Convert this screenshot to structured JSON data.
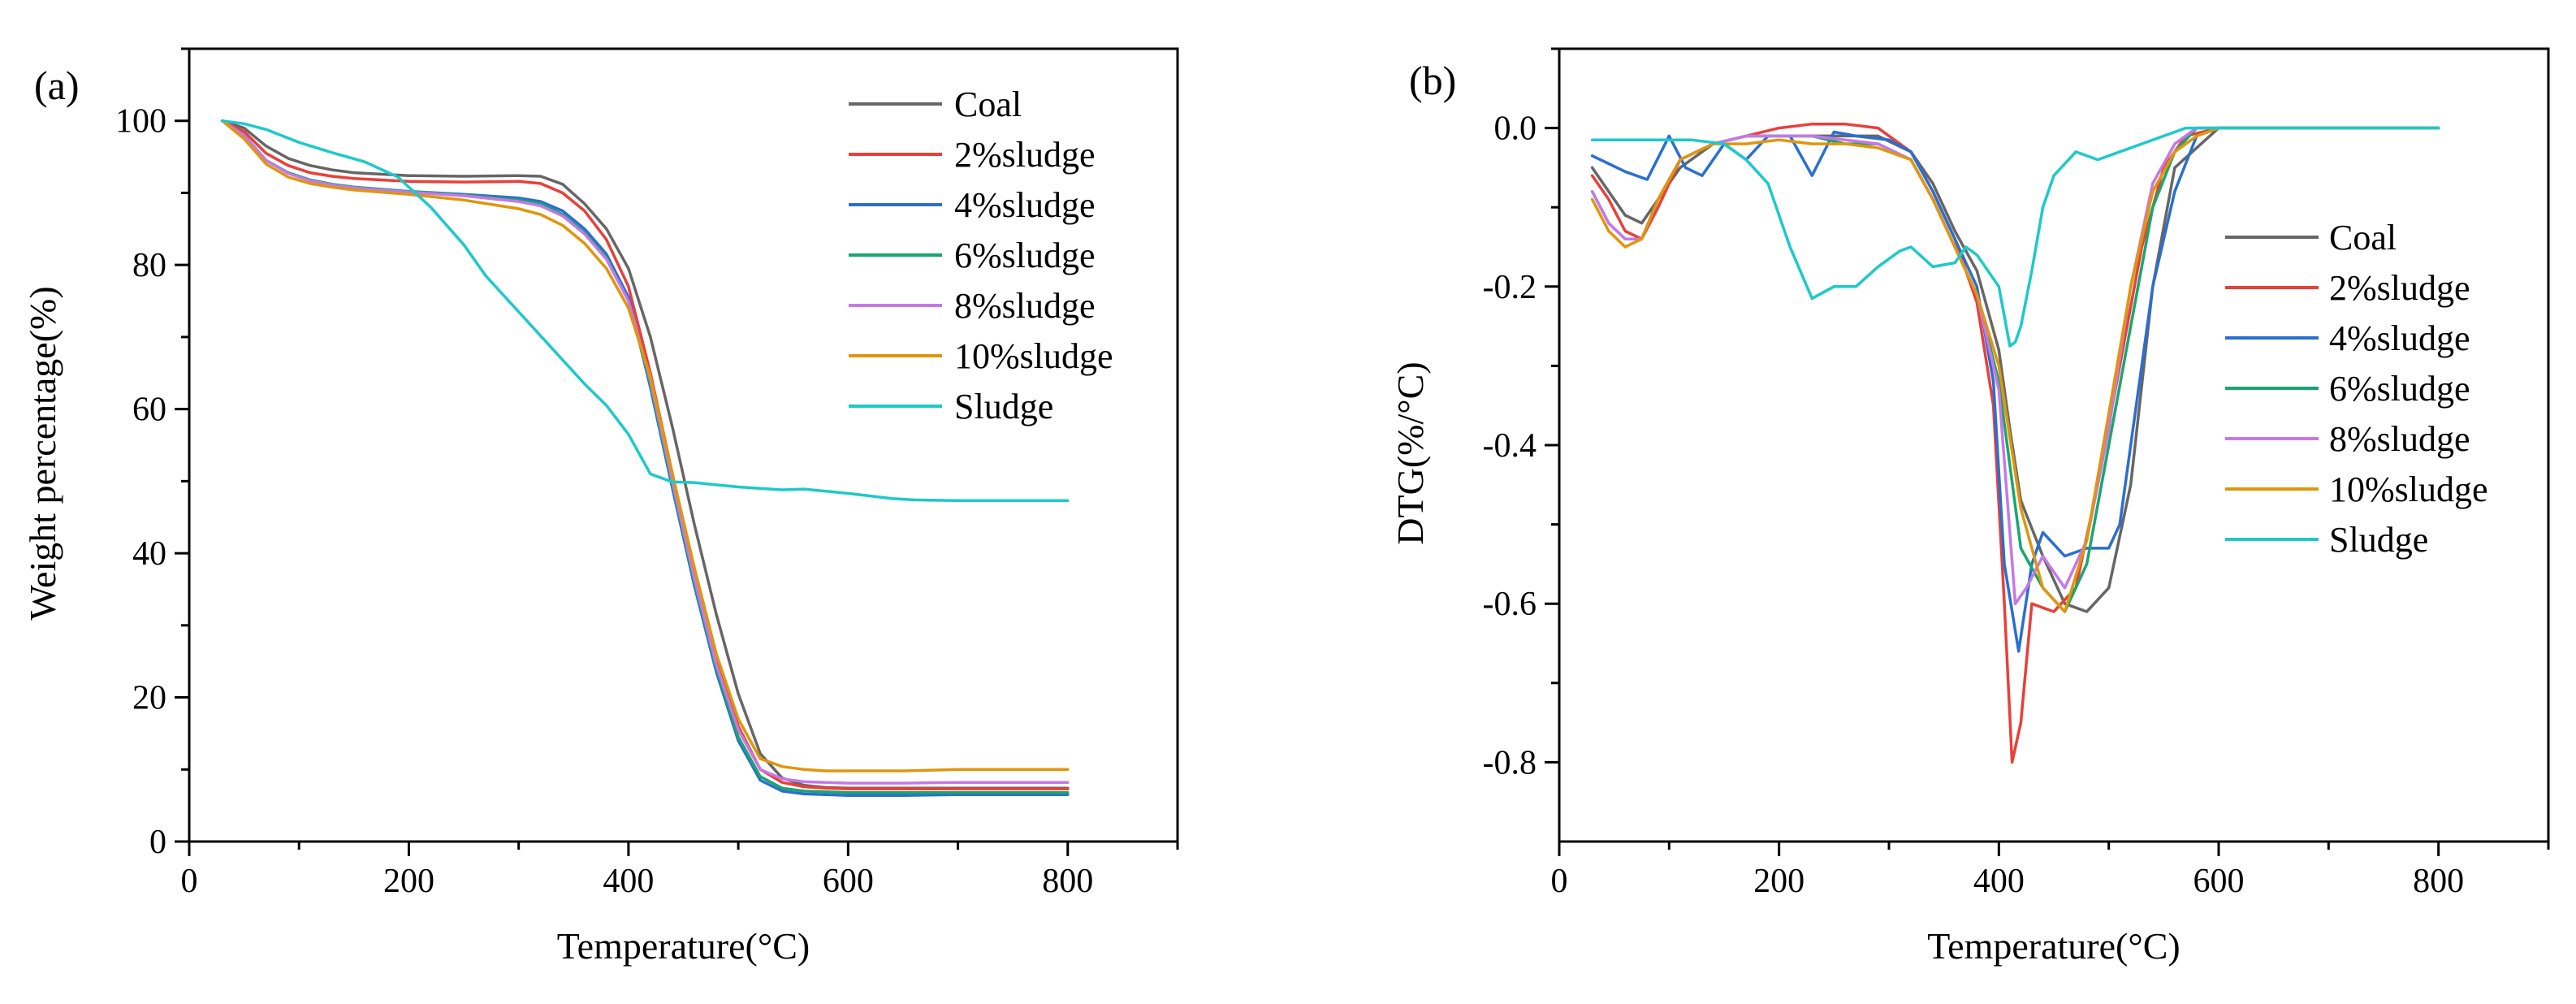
{
  "chart_data": [
    {
      "type": "line",
      "panel_label": "(a)",
      "xlabel": "Temperature(°C)",
      "ylabel": "Weight percentage(%)",
      "xlim": [
        0,
        900
      ],
      "ylim": [
        0,
        110
      ],
      "xticks": [
        0,
        200,
        400,
        600,
        800
      ],
      "yticks": [
        0,
        20,
        40,
        60,
        80,
        100
      ],
      "legend_position": "top-right",
      "series": [
        {
          "name": "Coal",
          "color": "#666666",
          "x": [
            30,
            50,
            70,
            90,
            110,
            130,
            150,
            200,
            250,
            300,
            320,
            340,
            360,
            380,
            400,
            420,
            440,
            460,
            480,
            500,
            520,
            540,
            560,
            580,
            600,
            650,
            700,
            750,
            800
          ],
          "y": [
            100,
            99,
            96.5,
            94.8,
            93.8,
            93.2,
            92.8,
            92.4,
            92.3,
            92.4,
            92.3,
            91.2,
            88.5,
            85,
            79.5,
            70,
            57.5,
            44,
            31.5,
            20.5,
            12.2,
            8.8,
            7.8,
            7.5,
            7.4,
            7.4,
            7.4,
            7.4,
            7.4
          ]
        },
        {
          "name": "2%sludge",
          "color": "#e8403a",
          "x": [
            30,
            50,
            70,
            90,
            110,
            130,
            150,
            200,
            250,
            300,
            320,
            340,
            360,
            380,
            400,
            420,
            440,
            460,
            480,
            500,
            520,
            540,
            560,
            580,
            600,
            650,
            700,
            750,
            800
          ],
          "y": [
            100,
            98.5,
            95.5,
            93.8,
            92.8,
            92.3,
            92,
            91.6,
            91.5,
            91.6,
            91.3,
            90,
            87.5,
            83.5,
            77,
            65,
            51,
            37.5,
            25.5,
            16,
            10,
            8.2,
            7.6,
            7.4,
            7.3,
            7.3,
            7.3,
            7.3,
            7.3
          ]
        },
        {
          "name": "4%sludge",
          "color": "#2a6fd1",
          "x": [
            30,
            50,
            70,
            90,
            110,
            130,
            150,
            200,
            250,
            300,
            320,
            340,
            360,
            380,
            400,
            420,
            440,
            460,
            480,
            500,
            520,
            540,
            560,
            580,
            600,
            650,
            700,
            750,
            800
          ],
          "y": [
            100,
            98,
            94.5,
            92.8,
            91.8,
            91.2,
            90.8,
            90.2,
            89.8,
            89.3,
            88.8,
            87.5,
            85,
            81.5,
            75.5,
            63,
            49,
            35.5,
            23.5,
            14,
            8.5,
            7,
            6.6,
            6.5,
            6.4,
            6.4,
            6.5,
            6.5,
            6.5
          ]
        },
        {
          "name": "6%sludge",
          "color": "#1aa66d",
          "x": [
            30,
            50,
            70,
            90,
            110,
            130,
            150,
            200,
            250,
            300,
            320,
            340,
            360,
            380,
            400,
            420,
            440,
            460,
            480,
            500,
            520,
            540,
            560,
            580,
            600,
            650,
            700,
            750,
            800
          ],
          "y": [
            100,
            98,
            94.5,
            92.8,
            91.8,
            91.2,
            90.8,
            90.2,
            89.7,
            89,
            88.5,
            87,
            84.5,
            81,
            75,
            63.5,
            49.5,
            36,
            24,
            14.5,
            9,
            7.4,
            7,
            6.9,
            6.8,
            6.8,
            6.8,
            6.8,
            6.8
          ]
        },
        {
          "name": "8%sludge",
          "color": "#c678e6",
          "x": [
            30,
            50,
            70,
            90,
            110,
            130,
            150,
            200,
            250,
            300,
            320,
            340,
            360,
            380,
            400,
            420,
            440,
            460,
            480,
            500,
            520,
            540,
            560,
            580,
            600,
            650,
            700,
            750,
            800
          ],
          "y": [
            100,
            98,
            94.5,
            92.7,
            91.7,
            91.1,
            90.7,
            90.1,
            89.6,
            88.8,
            88.2,
            86.8,
            84.3,
            80.8,
            75,
            64,
            50,
            36.5,
            24.5,
            15.5,
            10,
            8.7,
            8.3,
            8.2,
            8.1,
            8.1,
            8.2,
            8.2,
            8.2
          ]
        },
        {
          "name": "10%sludge",
          "color": "#e0960c",
          "x": [
            30,
            50,
            70,
            90,
            110,
            130,
            150,
            200,
            250,
            300,
            320,
            340,
            360,
            380,
            400,
            420,
            440,
            460,
            480,
            500,
            520,
            540,
            560,
            580,
            600,
            650,
            700,
            750,
            800
          ],
          "y": [
            100,
            97.5,
            94,
            92.2,
            91.3,
            90.8,
            90.4,
            89.8,
            89,
            87.8,
            87,
            85.5,
            83,
            79.5,
            74,
            64.5,
            51,
            38,
            26,
            17,
            11.5,
            10.4,
            10,
            9.8,
            9.8,
            9.8,
            10,
            10,
            10
          ]
        },
        {
          "name": "Sludge",
          "color": "#1ec9c9",
          "x": [
            30,
            50,
            70,
            100,
            130,
            160,
            190,
            220,
            250,
            270,
            300,
            330,
            360,
            380,
            400,
            420,
            440,
            460,
            500,
            540,
            560,
            600,
            640,
            660,
            700,
            750,
            800
          ],
          "y": [
            100,
            99.6,
            98.8,
            97,
            95.6,
            94.3,
            92.2,
            88,
            82.8,
            78.5,
            73.5,
            68.5,
            63.5,
            60.5,
            56.5,
            51,
            49.9,
            49.8,
            49.2,
            48.8,
            48.9,
            48.3,
            47.6,
            47.4,
            47.3,
            47.3,
            47.3
          ]
        }
      ]
    },
    {
      "type": "line",
      "panel_label": "(b)",
      "xlabel": "Temperature(°C)",
      "ylabel": "DTG(%/°C)",
      "xlim": [
        0,
        900
      ],
      "ylim": [
        -0.9,
        0.1
      ],
      "xticks": [
        0,
        200,
        400,
        600,
        800
      ],
      "yticks": [
        0.0,
        -0.2,
        -0.4,
        -0.6,
        -0.8
      ],
      "legend_position": "center-right",
      "series": [
        {
          "name": "Coal",
          "color": "#666666",
          "x": [
            30,
            45,
            60,
            75,
            90,
            110,
            140,
            170,
            200,
            230,
            260,
            290,
            320,
            340,
            360,
            380,
            400,
            410,
            420,
            440,
            460,
            480,
            500,
            520,
            540,
            560,
            600,
            650,
            700,
            800
          ],
          "y": [
            -0.05,
            -0.08,
            -0.11,
            -0.12,
            -0.09,
            -0.05,
            -0.02,
            -0.01,
            -0.01,
            -0.01,
            -0.01,
            -0.01,
            -0.03,
            -0.07,
            -0.13,
            -0.18,
            -0.28,
            -0.38,
            -0.47,
            -0.54,
            -0.6,
            -0.61,
            -0.58,
            -0.45,
            -0.2,
            -0.05,
            0.0,
            0.0,
            0.0,
            0.0
          ]
        },
        {
          "name": "2%sludge",
          "color": "#e8403a",
          "x": [
            30,
            45,
            60,
            75,
            90,
            110,
            140,
            170,
            200,
            230,
            260,
            290,
            320,
            340,
            360,
            380,
            395,
            405,
            412,
            420,
            430,
            450,
            470,
            490,
            510,
            530,
            550,
            570,
            600,
            650,
            700,
            800
          ],
          "y": [
            -0.06,
            -0.09,
            -0.13,
            -0.14,
            -0.1,
            -0.04,
            -0.02,
            -0.01,
            0.0,
            0.005,
            0.005,
            0.0,
            -0.03,
            -0.08,
            -0.14,
            -0.22,
            -0.35,
            -0.6,
            -0.8,
            -0.75,
            -0.6,
            -0.61,
            -0.58,
            -0.45,
            -0.3,
            -0.15,
            -0.05,
            -0.01,
            0.0,
            0.0,
            0.0,
            0.0
          ]
        },
        {
          "name": "4%sludge",
          "color": "#2a6fd1",
          "x": [
            30,
            45,
            60,
            80,
            100,
            115,
            130,
            150,
            170,
            190,
            210,
            230,
            250,
            270,
            300,
            320,
            340,
            360,
            380,
            395,
            405,
            418,
            430,
            440,
            460,
            480,
            500,
            510,
            520,
            540,
            560,
            580,
            600,
            650,
            700,
            800
          ],
          "y": [
            -0.035,
            -0.045,
            -0.055,
            -0.065,
            -0.01,
            -0.05,
            -0.06,
            -0.02,
            -0.04,
            -0.01,
            -0.01,
            -0.06,
            -0.005,
            -0.01,
            -0.015,
            -0.03,
            -0.08,
            -0.14,
            -0.2,
            -0.32,
            -0.55,
            -0.66,
            -0.55,
            -0.51,
            -0.54,
            -0.53,
            -0.53,
            -0.5,
            -0.4,
            -0.2,
            -0.08,
            -0.01,
            0.0,
            0.0,
            0.0,
            0.0
          ]
        },
        {
          "name": "6%sludge",
          "color": "#1aa66d",
          "x": [
            30,
            45,
            60,
            75,
            90,
            110,
            140,
            170,
            200,
            230,
            260,
            290,
            320,
            340,
            360,
            380,
            400,
            420,
            440,
            460,
            480,
            500,
            520,
            540,
            560,
            580,
            600,
            650,
            700,
            800
          ],
          "y": [
            -0.08,
            -0.12,
            -0.14,
            -0.14,
            -0.09,
            -0.04,
            -0.02,
            -0.01,
            -0.01,
            -0.01,
            -0.02,
            -0.02,
            -0.04,
            -0.09,
            -0.15,
            -0.21,
            -0.32,
            -0.53,
            -0.58,
            -0.61,
            -0.55,
            -0.4,
            -0.25,
            -0.1,
            -0.03,
            0.0,
            0.0,
            0.0,
            0.0,
            0.0
          ]
        },
        {
          "name": "8%sludge",
          "color": "#c678e6",
          "x": [
            30,
            45,
            60,
            75,
            90,
            110,
            140,
            170,
            200,
            230,
            260,
            290,
            320,
            340,
            360,
            380,
            400,
            415,
            425,
            440,
            460,
            480,
            500,
            520,
            540,
            560,
            580,
            600,
            650,
            700,
            800
          ],
          "y": [
            -0.08,
            -0.12,
            -0.14,
            -0.14,
            -0.09,
            -0.04,
            -0.02,
            -0.01,
            -0.01,
            -0.01,
            -0.015,
            -0.02,
            -0.04,
            -0.09,
            -0.15,
            -0.21,
            -0.33,
            -0.6,
            -0.58,
            -0.54,
            -0.58,
            -0.52,
            -0.38,
            -0.2,
            -0.07,
            -0.02,
            0.0,
            0.0,
            0.0,
            0.0,
            0.0
          ]
        },
        {
          "name": "10%sludge",
          "color": "#e0960c",
          "x": [
            30,
            45,
            60,
            75,
            90,
            110,
            140,
            170,
            200,
            230,
            260,
            290,
            320,
            340,
            360,
            380,
            400,
            420,
            440,
            460,
            480,
            500,
            520,
            540,
            560,
            580,
            600,
            650,
            700,
            800
          ],
          "y": [
            -0.09,
            -0.13,
            -0.15,
            -0.14,
            -0.09,
            -0.04,
            -0.02,
            -0.02,
            -0.015,
            -0.02,
            -0.02,
            -0.025,
            -0.04,
            -0.09,
            -0.15,
            -0.21,
            -0.3,
            -0.48,
            -0.58,
            -0.61,
            -0.52,
            -0.36,
            -0.2,
            -0.08,
            -0.03,
            -0.01,
            0.0,
            0.0,
            0.0,
            0.0
          ]
        },
        {
          "name": "Sludge",
          "color": "#1ec9c9",
          "x": [
            30,
            60,
            90,
            120,
            150,
            170,
            190,
            210,
            230,
            250,
            270,
            290,
            310,
            320,
            340,
            360,
            370,
            380,
            390,
            400,
            410,
            415,
            420,
            430,
            440,
            450,
            470,
            490,
            510,
            530,
            550,
            570,
            600,
            650,
            700,
            800
          ],
          "y": [
            -0.015,
            -0.015,
            -0.015,
            -0.015,
            -0.02,
            -0.04,
            -0.07,
            -0.15,
            -0.215,
            -0.2,
            -0.2,
            -0.175,
            -0.155,
            -0.15,
            -0.175,
            -0.17,
            -0.15,
            -0.16,
            -0.18,
            -0.2,
            -0.275,
            -0.27,
            -0.25,
            -0.18,
            -0.1,
            -0.06,
            -0.03,
            -0.04,
            -0.03,
            -0.02,
            -0.01,
            0.0,
            0.0,
            0.0,
            0.0,
            0.0
          ]
        }
      ]
    }
  ]
}
